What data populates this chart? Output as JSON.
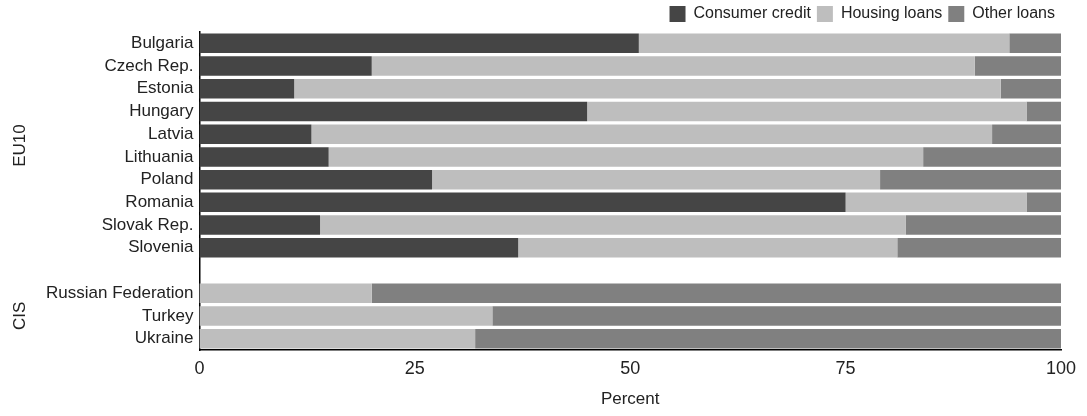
{
  "chart_data": {
    "type": "bar",
    "orientation": "horizontal",
    "stacked": true,
    "xlabel": "Percent",
    "categories": [
      "Bulgaria",
      "Czech Rep.",
      "Estonia",
      "Hungary",
      "Latvia",
      "Lithuania",
      "Poland",
      "Romania",
      "Slovak Rep.",
      "Slovenia",
      null,
      "Russian Federation",
      "Turkey",
      "Ukraine"
    ],
    "series": [
      {
        "name": "Consumer credit",
        "color": "#454545",
        "values": [
          51,
          20,
          11,
          45,
          13,
          15,
          27,
          75,
          14,
          37,
          null,
          null,
          null,
          null
        ]
      },
      {
        "name": "Housing loans",
        "color": "#bebebe",
        "values": [
          43,
          70,
          82,
          51,
          79,
          69,
          52,
          21,
          68,
          44,
          null,
          20,
          34,
          32
        ]
      },
      {
        "name": "Other loans",
        "color": "#808080",
        "values": [
          6,
          10,
          7,
          4,
          8,
          16,
          21,
          4,
          18,
          19,
          null,
          80,
          66,
          68
        ]
      }
    ],
    "xlim": [
      0,
      100
    ],
    "xticks": [
      0,
      25,
      50,
      75,
      100
    ],
    "grid": false,
    "legend": "top right",
    "annotations": [
      "EU10",
      "CIS"
    ]
  }
}
